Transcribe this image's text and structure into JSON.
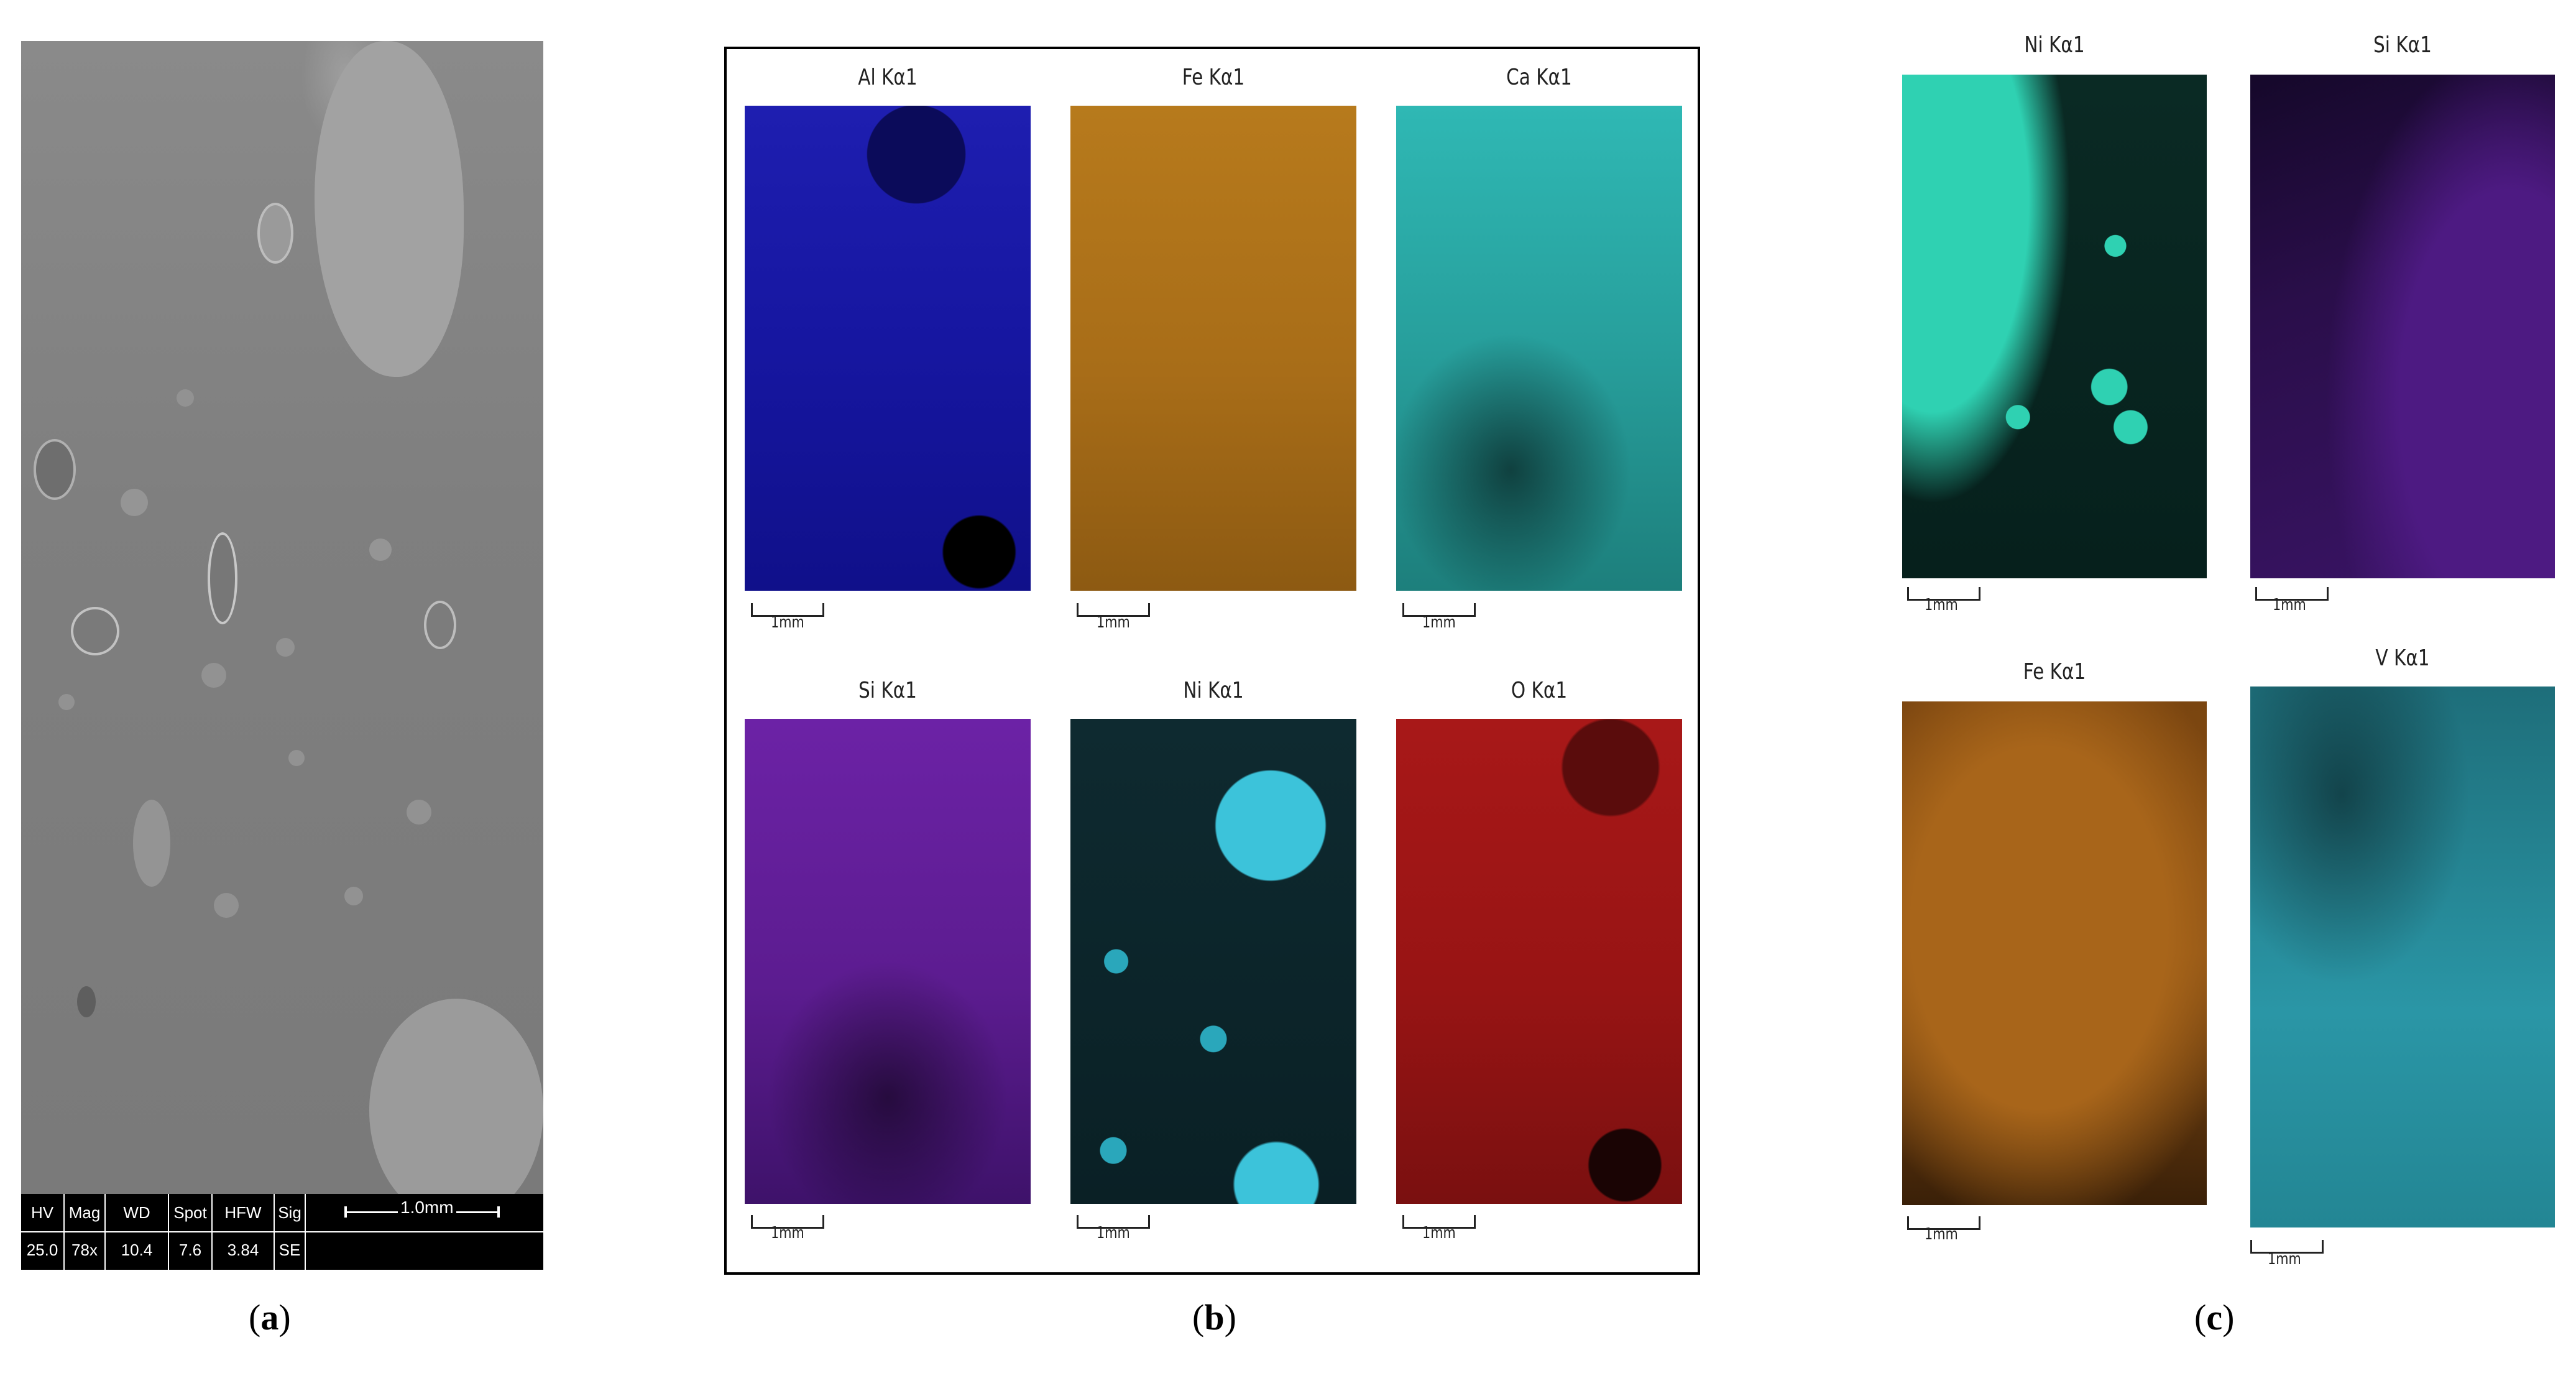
{
  "panel_a": {
    "letter": "a",
    "databar": {
      "headers": [
        "HV",
        "Mag",
        "WD",
        "Spot",
        "HFW",
        "Sig"
      ],
      "values": [
        "25.0 kV",
        "78x",
        "10.4 mm",
        "7.6",
        "3.84 mm",
        "SE"
      ],
      "scalebar_label": "1.0mm"
    }
  },
  "panel_b": {
    "letter": "b",
    "maps": [
      {
        "title": "Al Kα1",
        "scale": "1mm",
        "color": "#1a1aa6"
      },
      {
        "title": "Fe Kα1",
        "scale": "1mm",
        "color": "#b87a1e"
      },
      {
        "title": "Ca Kα1",
        "scale": "1mm",
        "color": "#2fb0ae"
      },
      {
        "title": "Si Kα1",
        "scale": "1mm",
        "color": "#6a1fa0"
      },
      {
        "title": "Ni Kα1",
        "scale": "1mm",
        "color": "#37c2d8"
      },
      {
        "title": "O Kα1",
        "scale": "1mm",
        "color": "#b01818"
      }
    ]
  },
  "panel_c": {
    "letter": "c",
    "maps": [
      {
        "title": "Ni Kα1",
        "scale": "1mm",
        "color": "#2fd0b0"
      },
      {
        "title": "Si Kα1",
        "scale": "1mm",
        "color": "#5a1f90"
      },
      {
        "title": "Fe Kα1",
        "scale": "1mm",
        "color": "#b06a18"
      },
      {
        "title": "V Kα1",
        "scale": "1mm",
        "color": "#2aa8b8"
      }
    ]
  }
}
